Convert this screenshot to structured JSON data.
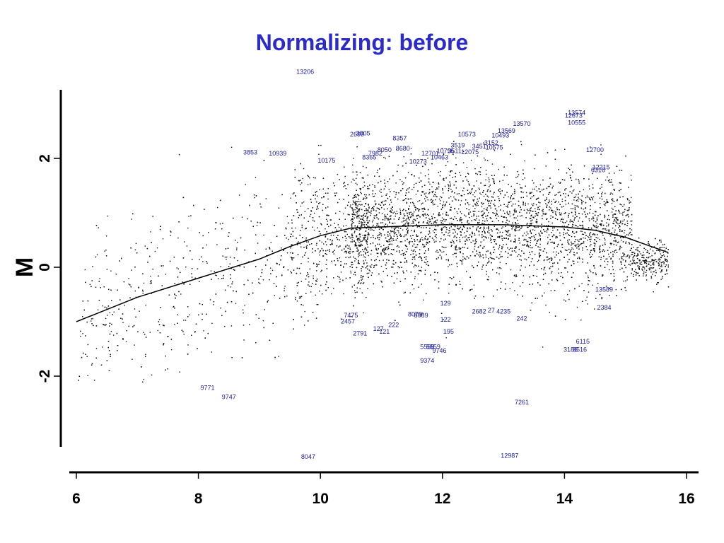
{
  "title": "Normalizing: before",
  "chart_data": {
    "type": "scatter",
    "title": "Normalizing: before",
    "xlabel": "",
    "ylabel": "M",
    "xlim": [
      5.9,
      16.2
    ],
    "ylim": [
      -3.3,
      3.3
    ],
    "x_ticks": [
      6,
      8,
      10,
      12,
      14,
      16
    ],
    "y_ticks": [
      -2,
      0,
      2
    ],
    "grid": false,
    "legend": "none",
    "colors": {
      "points": "#111111",
      "labels": "#1a1a9a",
      "title": "#2b2bcc"
    },
    "series": [
      {
        "type": "line",
        "x": [
          6.0,
          7.0,
          8.0,
          9.0,
          9.5,
          10.0,
          10.5,
          11.0,
          12.0,
          13.0,
          14.0,
          14.5,
          15.0,
          15.5,
          15.7
        ],
        "y": [
          -1.0,
          -0.55,
          -0.2,
          0.15,
          0.38,
          0.58,
          0.72,
          0.74,
          0.78,
          0.78,
          0.74,
          0.68,
          0.55,
          0.35,
          0.27
        ]
      }
    ],
    "annotations": [
      {
        "text": "13206",
        "x": 9.75,
        "y": 3.55
      },
      {
        "text": "13574",
        "x": 14.2,
        "y": 2.8
      },
      {
        "text": "12673",
        "x": 14.15,
        "y": 2.75
      },
      {
        "text": "10555",
        "x": 14.2,
        "y": 2.62
      },
      {
        "text": "13570",
        "x": 13.3,
        "y": 2.6
      },
      {
        "text": "13569",
        "x": 13.05,
        "y": 2.47
      },
      {
        "text": "10493",
        "x": 12.95,
        "y": 2.38
      },
      {
        "text": "10573",
        "x": 12.4,
        "y": 2.4
      },
      {
        "text": "2699",
        "x": 10.6,
        "y": 2.4
      },
      {
        "text": "3005",
        "x": 10.7,
        "y": 2.42
      },
      {
        "text": "8357",
        "x": 11.3,
        "y": 2.33
      },
      {
        "text": "3152",
        "x": 12.8,
        "y": 2.25
      },
      {
        "text": "3519",
        "x": 12.25,
        "y": 2.2
      },
      {
        "text": "3451",
        "x": 12.6,
        "y": 2.18
      },
      {
        "text": "10575",
        "x": 12.85,
        "y": 2.16
      },
      {
        "text": "12700",
        "x": 14.5,
        "y": 2.12
      },
      {
        "text": "3853",
        "x": 8.85,
        "y": 2.07
      },
      {
        "text": "10939",
        "x": 9.3,
        "y": 2.05
      },
      {
        "text": "8050",
        "x": 11.05,
        "y": 2.12
      },
      {
        "text": "8680",
        "x": 11.35,
        "y": 2.14
      },
      {
        "text": "7982",
        "x": 10.9,
        "y": 2.05
      },
      {
        "text": "8365",
        "x": 10.8,
        "y": 1.98
      },
      {
        "text": "12701",
        "x": 11.8,
        "y": 2.05
      },
      {
        "text": "10795",
        "x": 12.05,
        "y": 2.1
      },
      {
        "text": "3511",
        "x": 12.2,
        "y": 2.1
      },
      {
        "text": "12075",
        "x": 12.45,
        "y": 2.08
      },
      {
        "text": "10463",
        "x": 11.95,
        "y": 1.98
      },
      {
        "text": "10175",
        "x": 10.1,
        "y": 1.92
      },
      {
        "text": "10273",
        "x": 11.6,
        "y": 1.9
      },
      {
        "text": "12215",
        "x": 14.6,
        "y": 1.8
      },
      {
        "text": "6316",
        "x": 14.55,
        "y": 1.75
      },
      {
        "text": "13589",
        "x": 14.65,
        "y": -0.45
      },
      {
        "text": "7475",
        "x": 10.5,
        "y": -0.92
      },
      {
        "text": "2457",
        "x": 10.45,
        "y": -1.03
      },
      {
        "text": "8079",
        "x": 11.55,
        "y": -0.9
      },
      {
        "text": "8089",
        "x": 11.65,
        "y": -0.92
      },
      {
        "text": "129",
        "x": 12.05,
        "y": -0.7
      },
      {
        "text": "2682",
        "x": 12.6,
        "y": -0.85
      },
      {
        "text": "27",
        "x": 12.8,
        "y": -0.83
      },
      {
        "text": "4235",
        "x": 13.0,
        "y": -0.85
      },
      {
        "text": "2384",
        "x": 14.65,
        "y": -0.78
      },
      {
        "text": "122",
        "x": 12.05,
        "y": -1.0
      },
      {
        "text": "242",
        "x": 13.3,
        "y": -0.98
      },
      {
        "text": "222",
        "x": 11.2,
        "y": -1.1
      },
      {
        "text": "127",
        "x": 10.95,
        "y": -1.17
      },
      {
        "text": "121",
        "x": 11.05,
        "y": -1.22
      },
      {
        "text": "2791",
        "x": 10.65,
        "y": -1.25
      },
      {
        "text": "195",
        "x": 12.1,
        "y": -1.22
      },
      {
        "text": "6115",
        "x": 14.3,
        "y": -1.4
      },
      {
        "text": "5568",
        "x": 11.75,
        "y": -1.5
      },
      {
        "text": "5559",
        "x": 11.85,
        "y": -1.5
      },
      {
        "text": "9746",
        "x": 11.95,
        "y": -1.57
      },
      {
        "text": "3186",
        "x": 14.1,
        "y": -1.55
      },
      {
        "text": "8516",
        "x": 14.25,
        "y": -1.55
      },
      {
        "text": "9374",
        "x": 11.75,
        "y": -1.75
      },
      {
        "text": "9771",
        "x": 8.15,
        "y": -2.25
      },
      {
        "text": "9747",
        "x": 8.5,
        "y": -2.42
      },
      {
        "text": "7261",
        "x": 13.3,
        "y": -2.52
      },
      {
        "text": "12987",
        "x": 13.1,
        "y": -3.5
      },
      {
        "text": "8047",
        "x": 9.8,
        "y": -3.52
      }
    ]
  }
}
